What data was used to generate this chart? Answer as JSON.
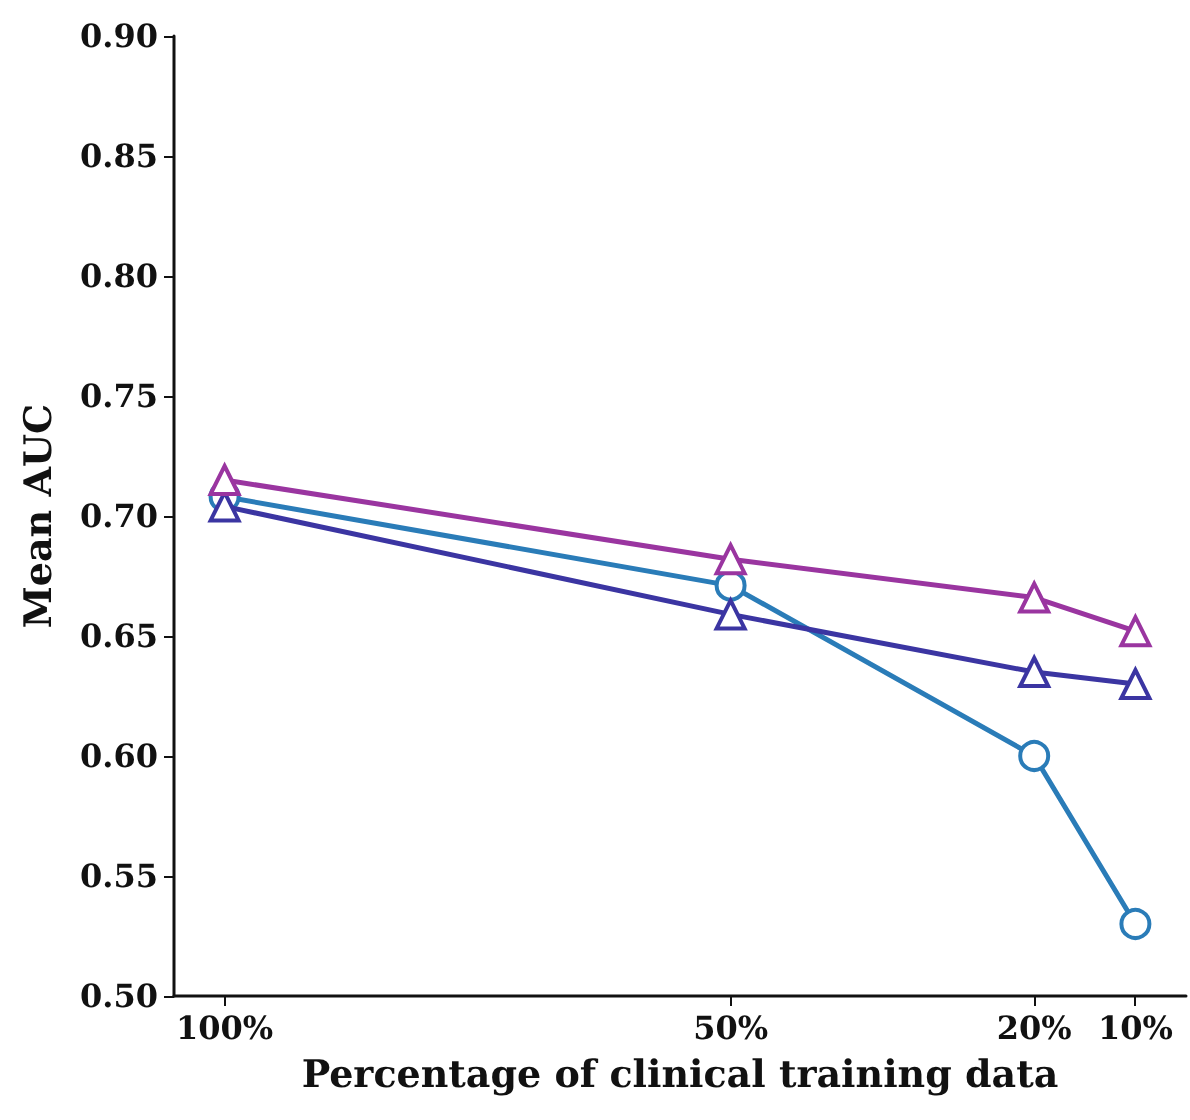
{
  "chart_data": {
    "type": "line",
    "xlabel": "Percentage of clinical training data",
    "ylabel": "Mean AUC",
    "x": [
      100,
      50,
      20,
      10
    ],
    "series": [
      {
        "color": "#9a35a0",
        "marker": "triangle",
        "values": [
          0.715,
          0.682,
          0.666,
          0.652
        ]
      },
      {
        "color": "#3b35a2",
        "marker": "triangle",
        "values": [
          0.704,
          0.659,
          0.635,
          0.63
        ]
      },
      {
        "color": "#2a7cb8",
        "marker": "circle",
        "values": [
          0.708,
          0.671,
          0.6,
          0.53
        ]
      }
    ],
    "xlim": [
      105,
      5
    ],
    "xticks": [
      {
        "value": 100,
        "label": "100%"
      },
      {
        "value": 50,
        "label": "50%"
      },
      {
        "value": 20,
        "label": "20%"
      },
      {
        "value": 10,
        "label": "10%"
      }
    ],
    "ylim": [
      0.5,
      0.9
    ],
    "yticks": [
      {
        "value": 0.5,
        "label": "0.50"
      },
      {
        "value": 0.55,
        "label": "0.55"
      },
      {
        "value": 0.6,
        "label": "0.60"
      },
      {
        "value": 0.65,
        "label": "0.65"
      },
      {
        "value": 0.7,
        "label": "0.70"
      },
      {
        "value": 0.75,
        "label": "0.75"
      },
      {
        "value": 0.8,
        "label": "0.80"
      },
      {
        "value": 0.85,
        "label": "0.85"
      },
      {
        "value": 0.9,
        "label": "0.90"
      }
    ],
    "grid": false,
    "line_style": "solid"
  }
}
